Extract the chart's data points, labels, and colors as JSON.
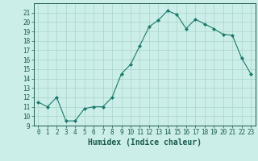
{
  "x": [
    0,
    1,
    2,
    3,
    4,
    5,
    6,
    7,
    8,
    9,
    10,
    11,
    12,
    13,
    14,
    15,
    16,
    17,
    18,
    19,
    20,
    21,
    22,
    23
  ],
  "y": [
    11.5,
    11.0,
    12.0,
    9.5,
    9.5,
    10.8,
    11.0,
    11.0,
    12.0,
    14.5,
    15.5,
    17.5,
    19.5,
    20.2,
    21.2,
    20.8,
    19.3,
    20.3,
    19.8,
    19.3,
    18.7,
    18.6,
    16.2,
    14.5
  ],
  "line_color": "#1a7a6e",
  "marker": "D",
  "marker_size": 2,
  "bg_color": "#cceee8",
  "grid_color": "#aed8d0",
  "xlabel": "Humidex (Indice chaleur)",
  "ylim": [
    9,
    22
  ],
  "xlim": [
    -0.5,
    23.5
  ],
  "yticks": [
    9,
    10,
    11,
    12,
    13,
    14,
    15,
    16,
    17,
    18,
    19,
    20,
    21
  ],
  "xticks": [
    0,
    1,
    2,
    3,
    4,
    5,
    6,
    7,
    8,
    9,
    10,
    11,
    12,
    13,
    14,
    15,
    16,
    17,
    18,
    19,
    20,
    21,
    22,
    23
  ],
  "tick_color": "#1a5a50",
  "label_fontsize": 7,
  "tick_fontsize": 5.5
}
